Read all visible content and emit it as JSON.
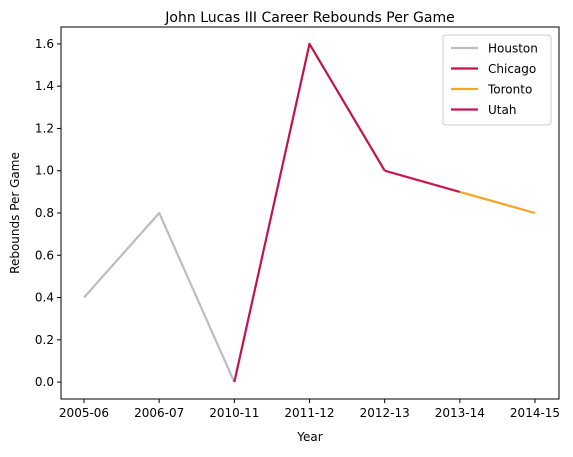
{
  "chart_data": {
    "type": "line",
    "title": "John Lucas III Career Rebounds Per Game",
    "xlabel": "Year",
    "ylabel": "Rebounds Per Game",
    "categories": [
      "2005-06",
      "2006-07",
      "2010-11",
      "2011-12",
      "2012-13",
      "2013-14",
      "2014-15"
    ],
    "y_ticks": [
      "0.0",
      "0.2",
      "0.4",
      "0.6",
      "0.8",
      "1.0",
      "1.2",
      "1.4",
      "1.6"
    ],
    "ylim": [
      -0.08,
      1.68
    ],
    "grid": false,
    "legend_position": "top-right",
    "series": [
      {
        "name": "Houston",
        "color": "#bdbdbd",
        "points": [
          {
            "x": "2005-06",
            "y": 0.4
          },
          {
            "x": "2006-07",
            "y": 0.8
          },
          {
            "x": "2010-11",
            "y": 0.0
          }
        ]
      },
      {
        "name": "Chicago",
        "color": "#c0144a",
        "points": [
          {
            "x": "2010-11",
            "y": 0.0
          },
          {
            "x": "2011-12",
            "y": 1.6
          },
          {
            "x": "2012-13",
            "y": 1.0
          }
        ]
      },
      {
        "name": "Toronto",
        "color": "#f5a623",
        "points": [
          {
            "x": "2013-14",
            "y": 0.9
          },
          {
            "x": "2014-15",
            "y": 0.8
          }
        ]
      },
      {
        "name": "Utah",
        "color": "#c8174e",
        "points": [
          {
            "x": "2012-13",
            "y": 1.0
          },
          {
            "x": "2013-14",
            "y": 0.9
          }
        ]
      }
    ]
  }
}
